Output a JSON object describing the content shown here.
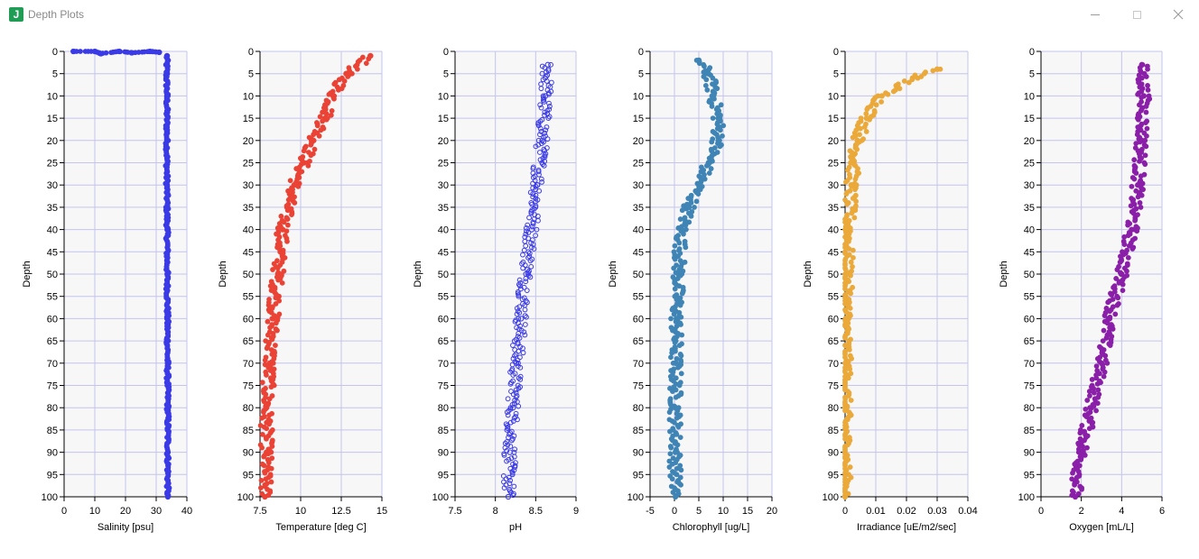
{
  "window": {
    "title": "Depth Plots",
    "app_icon_letter": "J"
  },
  "chart_data": [
    {
      "type": "scatter",
      "xlabel": "Salinity [psu]",
      "ylabel": "Depth",
      "xlim": [
        0,
        40
      ],
      "xticks": [
        0,
        10,
        20,
        30,
        40
      ],
      "ylim": [
        0,
        100
      ],
      "y_inverted": true,
      "grid": true,
      "color": "#3a3ae6",
      "marker": "filled",
      "series": [
        {
          "values": [
            {
              "x": 33.5,
              "y": 1
            },
            {
              "x": 33.4,
              "y": 5
            },
            {
              "x": 33.5,
              "y": 10
            },
            {
              "x": 33.5,
              "y": 20
            },
            {
              "x": 33.5,
              "y": 30
            },
            {
              "x": 33.6,
              "y": 40
            },
            {
              "x": 33.6,
              "y": 50
            },
            {
              "x": 33.7,
              "y": 60
            },
            {
              "x": 33.7,
              "y": 70
            },
            {
              "x": 33.8,
              "y": 80
            },
            {
              "x": 33.8,
              "y": 90
            },
            {
              "x": 33.8,
              "y": 100
            }
          ]
        },
        {
          "values": [
            {
              "x": 3,
              "y": 0
            },
            {
              "x": 10,
              "y": 0
            },
            {
              "x": 12,
              "y": 0.5
            },
            {
              "x": 18,
              "y": 0
            },
            {
              "x": 22,
              "y": 0.3
            },
            {
              "x": 28,
              "y": 0
            },
            {
              "x": 31,
              "y": 0.2
            }
          ]
        }
      ]
    },
    {
      "type": "scatter",
      "xlabel": "Temperature [deg C]",
      "ylabel": "Depth",
      "xlim": [
        7.5,
        15
      ],
      "xticks": [
        7.5,
        10,
        12.5,
        15
      ],
      "ylim": [
        0,
        100
      ],
      "y_inverted": true,
      "grid": true,
      "color": "#ea4335",
      "marker": "filled",
      "series": [
        {
          "values": [
            {
              "x": 14.3,
              "y": 1
            },
            {
              "x": 12.8,
              "y": 5
            },
            {
              "x": 12.0,
              "y": 10
            },
            {
              "x": 11.5,
              "y": 15
            },
            {
              "x": 10.8,
              "y": 20
            },
            {
              "x": 10.2,
              "y": 25
            },
            {
              "x": 9.6,
              "y": 30
            },
            {
              "x": 9.2,
              "y": 35
            },
            {
              "x": 8.9,
              "y": 40
            },
            {
              "x": 8.6,
              "y": 50
            },
            {
              "x": 8.3,
              "y": 60
            },
            {
              "x": 8.1,
              "y": 70
            },
            {
              "x": 7.9,
              "y": 80
            },
            {
              "x": 7.9,
              "y": 90
            },
            {
              "x": 7.8,
              "y": 100
            }
          ]
        }
      ]
    },
    {
      "type": "scatter",
      "xlabel": "pH",
      "ylabel": "Depth",
      "xlim": [
        7.5,
        9
      ],
      "xticks": [
        7.5,
        8,
        8.5,
        9
      ],
      "ylim": [
        0,
        100
      ],
      "y_inverted": true,
      "grid": true,
      "color": "#3a3ae6",
      "marker": "open",
      "series": [
        {
          "values": [
            {
              "x": 8.65,
              "y": 3
            },
            {
              "x": 8.62,
              "y": 10
            },
            {
              "x": 8.58,
              "y": 20
            },
            {
              "x": 8.52,
              "y": 30
            },
            {
              "x": 8.45,
              "y": 40
            },
            {
              "x": 8.38,
              "y": 50
            },
            {
              "x": 8.32,
              "y": 60
            },
            {
              "x": 8.26,
              "y": 70
            },
            {
              "x": 8.22,
              "y": 80
            },
            {
              "x": 8.18,
              "y": 90
            },
            {
              "x": 8.16,
              "y": 100
            }
          ]
        }
      ]
    },
    {
      "type": "scatter",
      "xlabel": "Chlorophyll [ug/L]",
      "ylabel": "Depth",
      "xlim": [
        -5,
        20
      ],
      "xticks": [
        -5,
        0,
        5,
        10,
        15,
        20
      ],
      "ylim": [
        0,
        100
      ],
      "y_inverted": true,
      "grid": true,
      "color": "#3f84b5",
      "marker": "filled",
      "series": [
        {
          "values": [
            {
              "x": 5,
              "y": 2
            },
            {
              "x": 7,
              "y": 5
            },
            {
              "x": 8,
              "y": 10
            },
            {
              "x": 9,
              "y": 15
            },
            {
              "x": 9,
              "y": 20
            },
            {
              "x": 7,
              "y": 25
            },
            {
              "x": 5,
              "y": 30
            },
            {
              "x": 3,
              "y": 35
            },
            {
              "x": 1.5,
              "y": 40
            },
            {
              "x": 0.8,
              "y": 50
            },
            {
              "x": 0.4,
              "y": 60
            },
            {
              "x": 0.3,
              "y": 70
            },
            {
              "x": 0.2,
              "y": 80
            },
            {
              "x": 0.2,
              "y": 90
            },
            {
              "x": 0.2,
              "y": 100
            }
          ]
        }
      ]
    },
    {
      "type": "scatter",
      "xlabel": "Irradiance [uE/m2/sec]",
      "ylabel": "Depth",
      "xlim": [
        0,
        0.04
      ],
      "xticks": [
        0,
        0.01,
        0.02,
        0.03,
        0.04
      ],
      "ylim": [
        0,
        100
      ],
      "y_inverted": true,
      "grid": true,
      "color": "#eba93a",
      "marker": "filled",
      "series": [
        {
          "values": [
            {
              "x": 0.03,
              "y": 4
            },
            {
              "x": 0.022,
              "y": 6
            },
            {
              "x": 0.012,
              "y": 10
            },
            {
              "x": 0.007,
              "y": 15
            },
            {
              "x": 0.004,
              "y": 20
            },
            {
              "x": 0.002,
              "y": 30
            },
            {
              "x": 0.001,
              "y": 40
            },
            {
              "x": 0.0005,
              "y": 50
            },
            {
              "x": 0.0002,
              "y": 60
            },
            {
              "x": 0.0001,
              "y": 70
            },
            {
              "x": 0.0,
              "y": 80
            },
            {
              "x": 0.0,
              "y": 100
            }
          ]
        }
      ]
    },
    {
      "type": "scatter",
      "xlabel": "Oxygen [mL/L]",
      "ylabel": "Depth",
      "xlim": [
        0,
        6
      ],
      "xticks": [
        0,
        2,
        4,
        6
      ],
      "ylim": [
        0,
        100
      ],
      "y_inverted": true,
      "grid": true,
      "color": "#8a1fa8",
      "marker": "filled",
      "series": [
        {
          "values": [
            {
              "x": 5.0,
              "y": 3
            },
            {
              "x": 5.1,
              "y": 10
            },
            {
              "x": 5.0,
              "y": 20
            },
            {
              "x": 4.8,
              "y": 30
            },
            {
              "x": 4.5,
              "y": 40
            },
            {
              "x": 4.0,
              "y": 50
            },
            {
              "x": 3.4,
              "y": 60
            },
            {
              "x": 3.0,
              "y": 70
            },
            {
              "x": 2.5,
              "y": 80
            },
            {
              "x": 2.0,
              "y": 90
            },
            {
              "x": 1.7,
              "y": 100
            }
          ]
        }
      ]
    }
  ]
}
